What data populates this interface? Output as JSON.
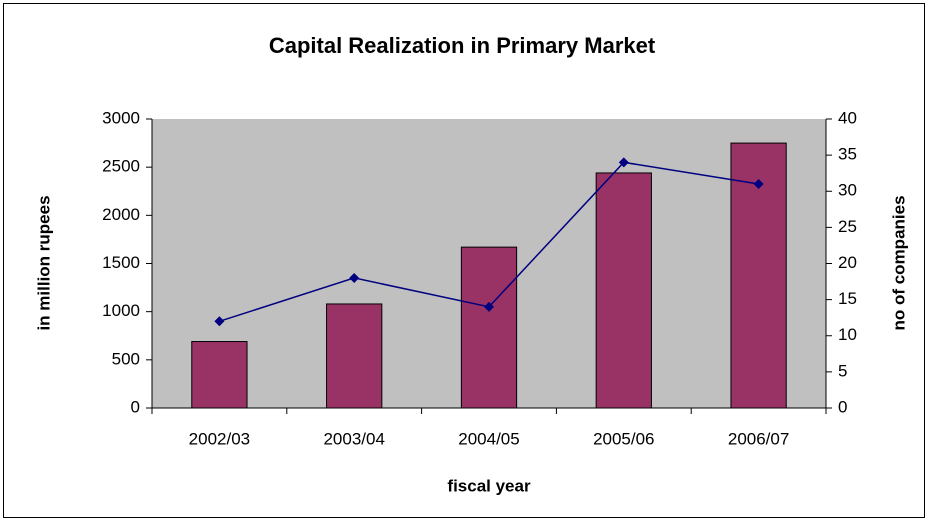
{
  "chart_data": {
    "type": "bar",
    "title": "Capital Realization in Primary Market",
    "xlabel": "fiscal year",
    "ylabel": "in million rupees",
    "y2label": "no of companies",
    "categories": [
      "2002/03",
      "2003/04",
      "2004/05",
      "2005/06",
      "2006/07"
    ],
    "series": [
      {
        "name": "in million rupees",
        "type": "bar",
        "color": "#993366",
        "values": [
          690,
          1080,
          1670,
          2440,
          2750
        ]
      },
      {
        "name": "no of companies",
        "type": "line",
        "axis": "y2",
        "color": "#000080",
        "values": [
          12,
          18,
          14,
          34,
          31
        ]
      }
    ],
    "ylim": [
      0,
      3000
    ],
    "yticks": [
      0,
      500,
      1000,
      1500,
      2000,
      2500,
      3000
    ],
    "y2lim": [
      0,
      40
    ],
    "y2ticks": [
      0,
      5,
      10,
      15,
      20,
      25,
      30,
      35,
      40
    ],
    "plot_background": "#c0c0c0",
    "grid": false
  }
}
